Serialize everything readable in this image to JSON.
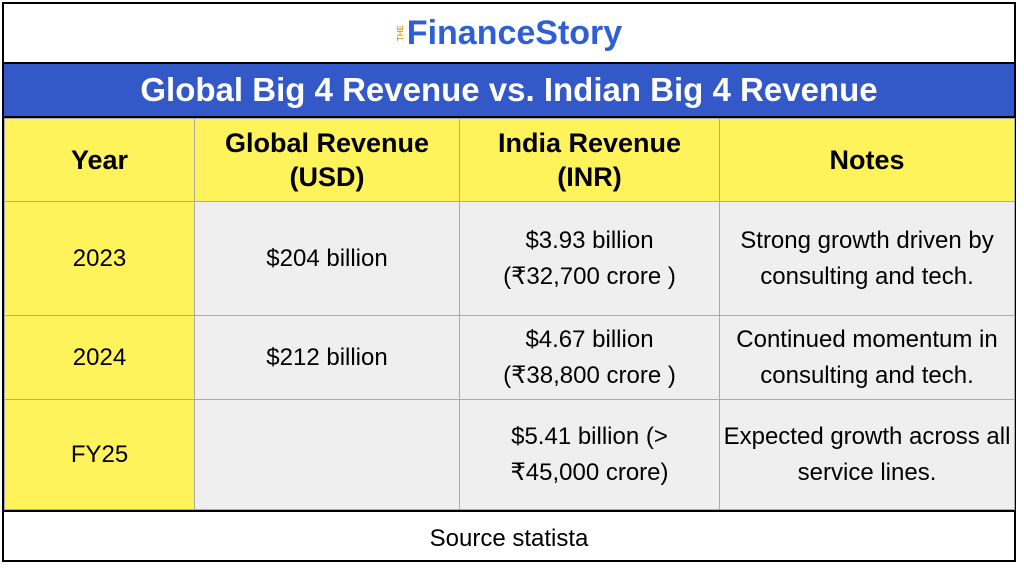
{
  "logo": {
    "prefix": "THE",
    "name": "FinanceStory"
  },
  "title": "Global Big 4 Revenue vs. Indian Big 4 Revenue",
  "table": {
    "header": [
      "Year",
      "Global Revenue (USD)",
      "India Revenue (INR)",
      "Notes"
    ],
    "rows": [
      [
        "2023",
        "$204 billion",
        "$3.93 billion (₹32,700 crore )",
        "Strong growth driven by consulting and tech."
      ],
      [
        "2024",
        "$212 billion",
        "$4.67 billion (₹38,800 crore )",
        "Continued momentum in consulting and tech."
      ],
      [
        "FY25",
        null,
        "$5.41 billion (> ₹45,000 crore)",
        "Expected growth across all service lines."
      ]
    ]
  },
  "source": "Source statista"
}
